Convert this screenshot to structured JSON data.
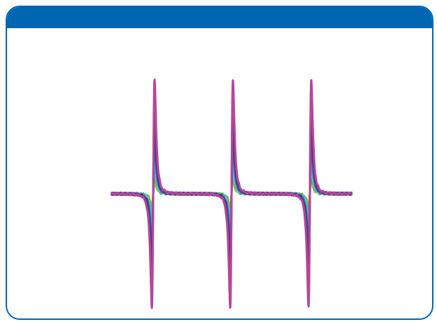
{
  "frame": {
    "accent_color": "#0066b3"
  },
  "chart_data": {
    "type": "line",
    "title": "",
    "xlabel": "",
    "ylabel": "",
    "axes_visible": false,
    "grid": false,
    "legend": "none",
    "peaks": {
      "count": 3,
      "centers": [
        -1.0,
        0.0,
        1.0
      ],
      "width": 0.03
    },
    "xlim": [
      -1.55,
      1.55
    ],
    "ylim": [
      -1.1,
      1.1
    ],
    "series": [
      {
        "color": "#a8c43a",
        "amplitude": 0.11
      },
      {
        "color": "#6db33f",
        "amplitude": 0.16
      },
      {
        "color": "#79c2b6",
        "amplitude": 0.22
      },
      {
        "color": "#4aa8dc",
        "amplitude": 0.29
      },
      {
        "color": "#2f6eb0",
        "amplitude": 0.44
      },
      {
        "color": "#3a3d8f",
        "amplitude": 0.6
      },
      {
        "color": "#6b2c6e",
        "amplitude": 0.78
      },
      {
        "color": "#b5479b",
        "amplitude": 1.0
      }
    ]
  }
}
